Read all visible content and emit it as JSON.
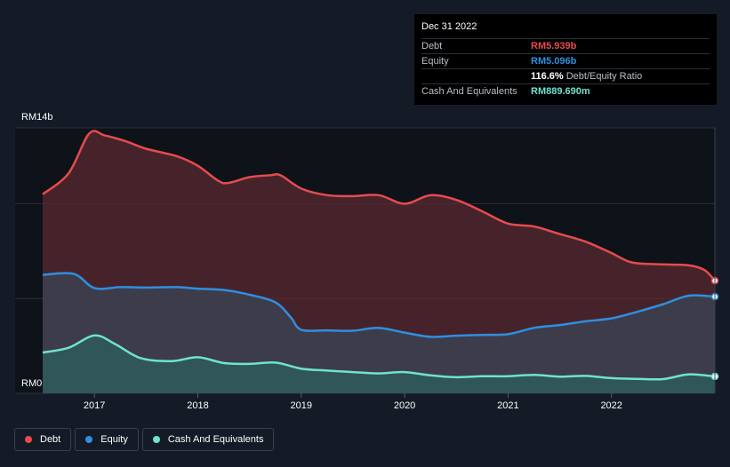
{
  "colors": {
    "background": "#151b26",
    "debt": "#e64b4e",
    "equity": "#2f8fe0",
    "cash": "#6fe3cd",
    "debt_fill": "#5a2a31",
    "equity_fill": "#3b4254",
    "cash_fill": "#2e5a5c"
  },
  "tooltip": {
    "date": "Dec 31 2022",
    "rows": [
      {
        "label": "Debt",
        "value": "RM5.939b",
        "color": "#e64b4e"
      },
      {
        "label": "Equity",
        "value": "RM5.096b",
        "color": "#2f8fe0"
      },
      {
        "label": "",
        "value": "116.6%",
        "suffix": "Debt/Equity Ratio",
        "color": "#ffffff"
      },
      {
        "label": "Cash And Equivalents",
        "value": "RM889.690m",
        "color": "#6fe3cd"
      }
    ]
  },
  "legend": [
    {
      "label": "Debt",
      "color": "#e64b4e"
    },
    {
      "label": "Equity",
      "color": "#2f8fe0"
    },
    {
      "label": "Cash And Equivalents",
      "color": "#6fe3cd"
    }
  ],
  "chart_data": {
    "type": "area",
    "title": "",
    "y_top_label": "RM14b",
    "y_bottom_label": "RM0",
    "ylim": [
      0,
      14
    ],
    "xlim": [
      2016.5,
      2023.0
    ],
    "x_ticks": [
      2017,
      2018,
      2019,
      2020,
      2021,
      2022
    ],
    "x_tick_labels": [
      "2017",
      "2018",
      "2019",
      "2020",
      "2021",
      "2022"
    ],
    "grid": true,
    "series": [
      {
        "name": "Debt",
        "unit": "RM b",
        "points": [
          [
            2016.5,
            10.5
          ],
          [
            2016.75,
            11.6
          ],
          [
            2016.95,
            13.7
          ],
          [
            2017.1,
            13.6
          ],
          [
            2017.3,
            13.3
          ],
          [
            2017.5,
            12.9
          ],
          [
            2017.8,
            12.5
          ],
          [
            2018.0,
            12.0
          ],
          [
            2018.2,
            11.2
          ],
          [
            2018.3,
            11.1
          ],
          [
            2018.5,
            11.4
          ],
          [
            2018.7,
            11.5
          ],
          [
            2018.8,
            11.5
          ],
          [
            2019.0,
            10.8
          ],
          [
            2019.25,
            10.45
          ],
          [
            2019.5,
            10.4
          ],
          [
            2019.75,
            10.45
          ],
          [
            2020.0,
            10.0
          ],
          [
            2020.25,
            10.45
          ],
          [
            2020.5,
            10.2
          ],
          [
            2020.75,
            9.6
          ],
          [
            2021.0,
            8.95
          ],
          [
            2021.25,
            8.8
          ],
          [
            2021.5,
            8.4
          ],
          [
            2021.75,
            8.0
          ],
          [
            2022.0,
            7.4
          ],
          [
            2022.2,
            6.9
          ],
          [
            2022.5,
            6.8
          ],
          [
            2022.75,
            6.75
          ],
          [
            2022.9,
            6.5
          ],
          [
            2023.0,
            5.939
          ]
        ]
      },
      {
        "name": "Equity",
        "unit": "RM b",
        "points": [
          [
            2016.5,
            6.25
          ],
          [
            2016.8,
            6.3
          ],
          [
            2017.0,
            5.55
          ],
          [
            2017.25,
            5.6
          ],
          [
            2017.5,
            5.58
          ],
          [
            2017.8,
            5.6
          ],
          [
            2018.0,
            5.52
          ],
          [
            2018.25,
            5.45
          ],
          [
            2018.5,
            5.2
          ],
          [
            2018.75,
            4.8
          ],
          [
            2018.9,
            4.0
          ],
          [
            2019.0,
            3.35
          ],
          [
            2019.25,
            3.32
          ],
          [
            2019.5,
            3.3
          ],
          [
            2019.75,
            3.45
          ],
          [
            2020.0,
            3.2
          ],
          [
            2020.25,
            2.98
          ],
          [
            2020.5,
            3.04
          ],
          [
            2020.75,
            3.08
          ],
          [
            2021.0,
            3.12
          ],
          [
            2021.25,
            3.45
          ],
          [
            2021.5,
            3.6
          ],
          [
            2021.75,
            3.8
          ],
          [
            2022.0,
            3.95
          ],
          [
            2022.25,
            4.3
          ],
          [
            2022.5,
            4.7
          ],
          [
            2022.75,
            5.15
          ],
          [
            2023.0,
            5.096
          ]
        ]
      },
      {
        "name": "Cash And Equivalents",
        "unit": "RM b",
        "points": [
          [
            2016.5,
            2.15
          ],
          [
            2016.75,
            2.4
          ],
          [
            2017.0,
            3.05
          ],
          [
            2017.2,
            2.6
          ],
          [
            2017.45,
            1.85
          ],
          [
            2017.75,
            1.7
          ],
          [
            2018.0,
            1.9
          ],
          [
            2018.25,
            1.6
          ],
          [
            2018.5,
            1.55
          ],
          [
            2018.75,
            1.62
          ],
          [
            2019.0,
            1.3
          ],
          [
            2019.25,
            1.2
          ],
          [
            2019.5,
            1.12
          ],
          [
            2019.75,
            1.05
          ],
          [
            2020.0,
            1.12
          ],
          [
            2020.25,
            0.95
          ],
          [
            2020.5,
            0.85
          ],
          [
            2020.75,
            0.9
          ],
          [
            2021.0,
            0.9
          ],
          [
            2021.25,
            0.97
          ],
          [
            2021.5,
            0.88
          ],
          [
            2021.75,
            0.92
          ],
          [
            2022.0,
            0.8
          ],
          [
            2022.25,
            0.76
          ],
          [
            2022.5,
            0.75
          ],
          [
            2022.75,
            1.0
          ],
          [
            2023.0,
            0.88969
          ]
        ]
      }
    ]
  }
}
